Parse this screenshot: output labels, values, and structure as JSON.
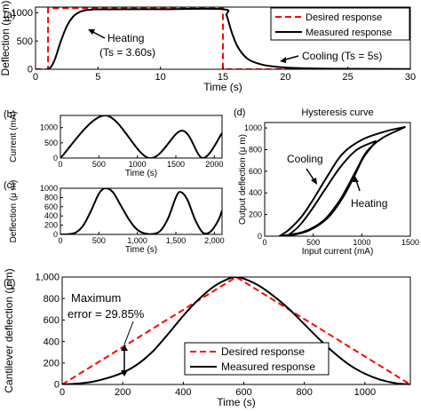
{
  "chart_data": [
    {
      "panel": "(a)",
      "type": "line",
      "xlabel": "Time (s)",
      "ylabel": "Deflection (μ m)",
      "xlim": [
        0,
        30
      ],
      "ylim": [
        0,
        1100
      ],
      "xticks": [
        0,
        5,
        10,
        15,
        20,
        25,
        30
      ],
      "yticks": [
        0,
        500,
        1000
      ],
      "ytick_labels": [
        "0",
        "500",
        "1000"
      ],
      "legend": {
        "placement": "top-right",
        "entries": [
          "Desired response",
          "Measured response"
        ]
      },
      "annotations": [
        "Heating",
        "(Ts = 3.60s)",
        "Cooling (Ts = 5s)"
      ],
      "series": [
        {
          "name": "Desired response",
          "style": "dashed",
          "color": "#ff0000",
          "x": [
            0,
            1,
            1,
            15,
            15,
            30
          ],
          "y": [
            0,
            0,
            1080,
            1080,
            0,
            0
          ]
        },
        {
          "name": "Measured response",
          "style": "solid",
          "color": "#000000",
          "x": [
            0,
            1,
            1.5,
            2,
            2.5,
            3,
            3.5,
            4,
            4.5,
            5,
            10,
            15,
            15.3,
            15.7,
            16.2,
            17,
            18,
            19,
            20,
            22,
            25,
            30
          ],
          "y": [
            0,
            0,
            150,
            480,
            760,
            930,
            1010,
            1045,
            1055,
            1060,
            1062,
            1062,
            950,
            660,
            390,
            180,
            90,
            50,
            30,
            15,
            8,
            5
          ]
        }
      ]
    },
    {
      "panel": "(b)",
      "type": "line",
      "xlabel": "Time (s)",
      "ylabel": "Current (mA)",
      "xlim": [
        0,
        2100
      ],
      "ylim": [
        0,
        1400
      ],
      "xticks": [
        0,
        500,
        1000,
        1500,
        2000
      ],
      "yticks": [
        0,
        500,
        1000
      ],
      "ytick_labels": [
        "0",
        "500",
        "1000"
      ],
      "series": [
        {
          "color": "#000000",
          "x": [
            0,
            580,
            1150,
            1580,
            1850,
            2100
          ],
          "y": [
            0,
            1400,
            0,
            900,
            0,
            820
          ]
        }
      ]
    },
    {
      "panel": "(c)",
      "type": "line",
      "xlabel": "Time (s)",
      "ylabel": "Deflection (μ m)",
      "xlim": [
        0,
        2100
      ],
      "ylim": [
        0,
        1000
      ],
      "xticks": [
        0,
        500,
        1000,
        1500,
        2000
      ],
      "xtick_labels": [
        "0",
        "500",
        "1,000",
        "1,500",
        "2,000"
      ],
      "yticks": [
        0,
        200,
        400,
        600,
        800,
        1000
      ],
      "ytick_labels": [
        "0",
        "200",
        "400",
        "600",
        "800",
        "1000"
      ],
      "series": [
        {
          "color": "#000000",
          "x": [
            0,
            100,
            200,
            300,
            400,
            500,
            580,
            680,
            780,
            900,
            1000,
            1100,
            1200,
            1300,
            1400,
            1500,
            1560,
            1650,
            1750,
            1850,
            1950,
            2050,
            2100
          ],
          "y": [
            0,
            5,
            40,
            200,
            520,
            880,
            1000,
            920,
            640,
            300,
            100,
            20,
            10,
            80,
            350,
            800,
            920,
            750,
            320,
            40,
            60,
            300,
            520
          ]
        }
      ]
    },
    {
      "panel": "(d)",
      "type": "line",
      "title": "Hysteresis curve",
      "xlabel": "Input current (mA)",
      "ylabel": "Output deflection (μ m)",
      "xlim": [
        0,
        1500
      ],
      "ylim": [
        0,
        1050
      ],
      "xticks": [
        0,
        500,
        1000,
        1500
      ],
      "yticks": [
        0,
        200,
        400,
        600,
        800,
        1000
      ],
      "annotations": [
        "Cooling",
        "Heating"
      ],
      "series": [
        {
          "name": "loop-1",
          "color": "#000000",
          "x": [
            150,
            400,
            600,
            750,
            850,
            950,
            1050,
            1200,
            1400,
            1450
          ],
          "y": [
            0,
            40,
            140,
            300,
            450,
            620,
            780,
            900,
            990,
            1010
          ]
        },
        {
          "name": "loop-2",
          "color": "#000000",
          "x": [
            1450,
            1250,
            1000,
            800,
            650,
            500,
            380,
            250,
            150
          ],
          "y": [
            1010,
            970,
            890,
            760,
            560,
            340,
            180,
            60,
            0
          ]
        },
        {
          "name": "loop-3",
          "color": "#000000",
          "x": [
            230,
            450,
            650,
            800,
            920,
            1020,
            1150
          ],
          "y": [
            0,
            50,
            170,
            350,
            550,
            730,
            880
          ]
        },
        {
          "name": "loop-4",
          "color": "#000000",
          "x": [
            1150,
            950,
            780,
            620,
            480,
            350,
            230
          ],
          "y": [
            880,
            800,
            640,
            430,
            240,
            90,
            0
          ]
        }
      ]
    },
    {
      "panel": "(e)",
      "type": "line",
      "xlabel": "Time (s)",
      "ylabel": "Cantilever deflection (μ m)",
      "xlim": [
        0,
        1150
      ],
      "ylim": [
        0,
        1000
      ],
      "xticks": [
        0,
        200,
        400,
        600,
        800,
        1000
      ],
      "yticks": [
        0,
        200,
        400,
        600,
        800,
        1000
      ],
      "ytick_labels": [
        "0",
        "200",
        "400",
        "600",
        "800",
        "1,000"
      ],
      "legend": {
        "placement": "bottom-center",
        "entries": [
          "Desired response",
          "Measured response"
        ]
      },
      "annotations": [
        "Maximum",
        "error = 29.85%"
      ],
      "series": [
        {
          "name": "Desired response",
          "style": "dashed",
          "color": "#ff0000",
          "x": [
            0,
            575,
            1150
          ],
          "y": [
            0,
            1000,
            0
          ]
        },
        {
          "name": "Measured response",
          "style": "solid",
          "color": "#000000",
          "x": [
            0,
            50,
            100,
            150,
            200,
            250,
            300,
            350,
            400,
            450,
            500,
            550,
            575,
            600,
            650,
            700,
            750,
            800,
            850,
            900,
            950,
            1000,
            1050,
            1100,
            1150
          ],
          "y": [
            0,
            8,
            25,
            60,
            110,
            190,
            310,
            470,
            640,
            790,
            910,
            985,
            1000,
            985,
            920,
            820,
            700,
            560,
            420,
            290,
            180,
            100,
            45,
            12,
            0
          ]
        }
      ]
    }
  ]
}
